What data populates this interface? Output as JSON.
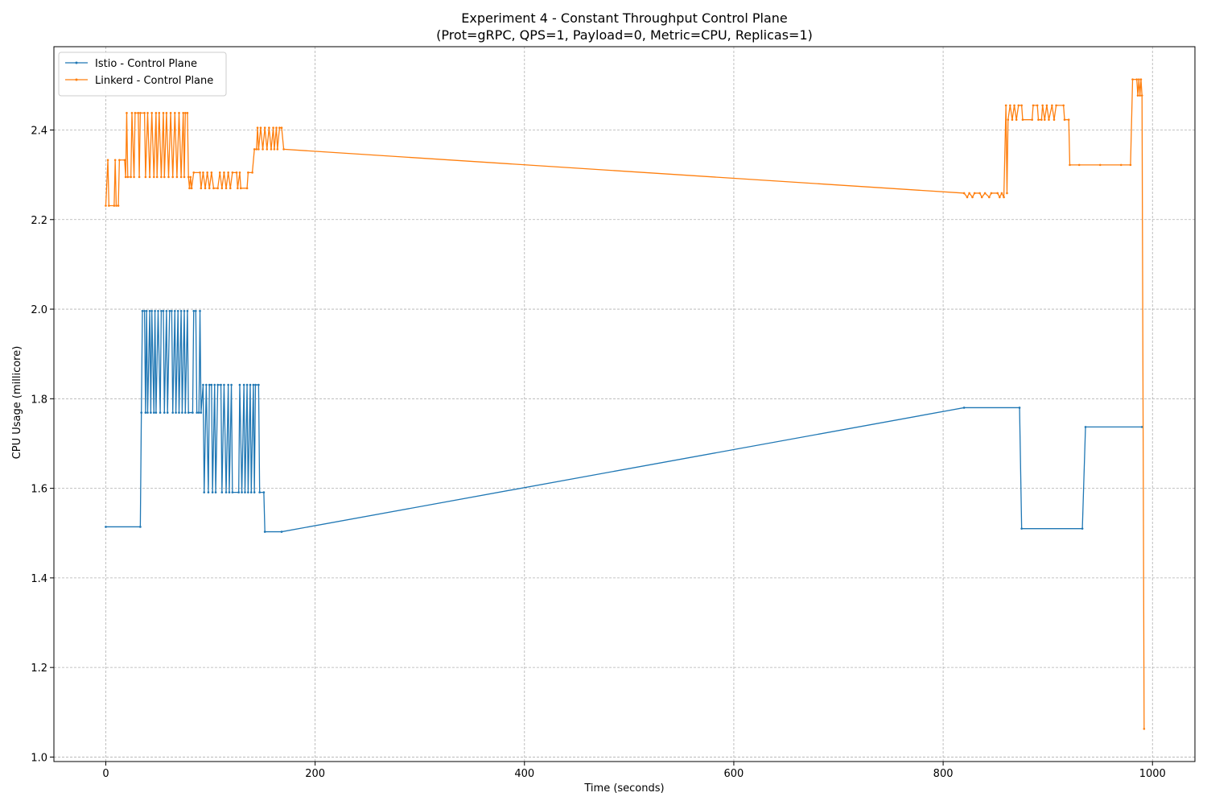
{
  "chart_data": {
    "type": "line",
    "title": "Experiment 4 - Constant Throughput Control Plane",
    "subtitle": "(Prot=gRPC, QPS=1, Payload=0, Metric=CPU, Replicas=1)",
    "x_label": "Time (seconds)",
    "y_label": "CPU Usage (millicore)",
    "xlim": [
      -49.55,
      1040.55
    ],
    "ylim": [
      0.99,
      2.586
    ],
    "xticks": [
      0,
      200,
      400,
      600,
      800,
      1000
    ],
    "yticks": [
      {
        "value": 1,
        "label": "1.0"
      },
      1.2,
      1.4,
      1.6,
      1.8,
      {
        "value": 2,
        "label": "2.0"
      },
      2.2,
      2.4
    ],
    "grid": true,
    "legend": "upper left",
    "series": [
      {
        "name": "Istio - Control Plane",
        "color": "#1f77b4",
        "x": [
          0,
          33,
          34,
          35,
          37,
          38,
          39,
          40,
          42,
          43,
          44,
          46,
          47,
          48,
          50,
          52,
          53,
          55,
          56,
          58,
          59,
          61,
          63,
          64,
          66,
          67,
          69,
          70,
          72,
          73,
          75,
          76,
          78,
          79,
          83,
          84,
          86,
          87,
          89,
          90,
          91,
          93,
          94,
          96,
          98,
          99,
          101,
          102,
          104,
          105,
          107,
          110,
          111,
          113,
          115,
          117,
          118,
          120,
          121,
          127,
          128,
          130,
          132,
          133,
          135,
          136,
          138,
          139,
          141,
          142,
          143,
          146,
          147,
          151,
          152,
          168,
          820,
          873,
          875,
          933,
          936,
          990
        ],
        "values": [
          1.514,
          1.514,
          1.769,
          1.996,
          1.996,
          1.769,
          1.996,
          1.769,
          1.996,
          1.769,
          1.996,
          1.769,
          1.996,
          1.769,
          1.996,
          1.769,
          1.996,
          1.996,
          1.769,
          1.996,
          1.769,
          1.996,
          1.996,
          1.769,
          1.996,
          1.769,
          1.996,
          1.769,
          1.996,
          1.769,
          1.996,
          1.769,
          1.996,
          1.769,
          1.769,
          1.996,
          1.996,
          1.769,
          1.769,
          1.996,
          1.769,
          1.831,
          1.591,
          1.831,
          1.591,
          1.831,
          1.831,
          1.591,
          1.831,
          1.591,
          1.831,
          1.831,
          1.591,
          1.831,
          1.591,
          1.831,
          1.591,
          1.831,
          1.591,
          1.591,
          1.831,
          1.591,
          1.831,
          1.591,
          1.831,
          1.591,
          1.831,
          1.591,
          1.831,
          1.591,
          1.831,
          1.831,
          1.591,
          1.591,
          1.503,
          1.503,
          1.78,
          1.78,
          1.51,
          1.51,
          1.737,
          1.737
        ]
      },
      {
        "name": "Linkerd - Control Plane",
        "color": "#ff7f0e",
        "x": [
          0,
          2,
          3,
          8,
          9,
          10,
          12,
          13,
          18,
          19,
          20,
          21,
          24,
          25,
          27,
          28,
          31,
          32,
          33,
          37,
          38,
          40,
          42,
          44,
          46,
          48,
          49,
          51,
          53,
          55,
          56,
          58,
          60,
          62,
          64,
          66,
          68,
          70,
          72,
          74,
          75,
          76,
          78,
          79,
          80,
          81,
          82,
          84,
          90,
          91,
          93,
          95,
          97,
          99,
          101,
          103,
          107,
          109,
          111,
          113,
          115,
          117,
          119,
          121,
          125,
          126,
          128,
          129,
          135,
          136,
          140,
          142,
          144,
          145,
          146,
          148,
          150,
          152,
          154,
          156,
          158,
          160,
          161,
          163,
          164,
          166,
          168,
          170,
          820,
          823,
          825,
          828,
          830,
          835,
          837,
          840,
          844,
          846,
          852,
          854,
          856,
          858,
          860,
          861,
          862,
          864,
          866,
          868,
          870,
          872,
          875,
          876,
          885,
          886,
          890,
          891,
          894,
          895,
          897,
          899,
          901,
          904,
          906,
          908,
          915,
          916,
          920,
          921,
          930,
          950,
          970,
          979,
          981,
          985,
          986,
          987,
          988,
          989,
          990,
          992
        ],
        "values": [
          2.231,
          2.333,
          2.231,
          2.231,
          2.333,
          2.231,
          2.231,
          2.333,
          2.333,
          2.295,
          2.438,
          2.295,
          2.295,
          2.438,
          2.295,
          2.438,
          2.438,
          2.295,
          2.438,
          2.438,
          2.295,
          2.438,
          2.295,
          2.438,
          2.295,
          2.438,
          2.295,
          2.438,
          2.295,
          2.438,
          2.295,
          2.438,
          2.295,
          2.438,
          2.295,
          2.438,
          2.295,
          2.438,
          2.295,
          2.438,
          2.295,
          2.438,
          2.438,
          2.295,
          2.27,
          2.295,
          2.27,
          2.305,
          2.305,
          2.27,
          2.305,
          2.27,
          2.305,
          2.27,
          2.305,
          2.27,
          2.27,
          2.305,
          2.27,
          2.305,
          2.27,
          2.305,
          2.27,
          2.305,
          2.305,
          2.27,
          2.305,
          2.27,
          2.27,
          2.305,
          2.305,
          2.357,
          2.357,
          2.405,
          2.357,
          2.405,
          2.357,
          2.405,
          2.357,
          2.405,
          2.357,
          2.405,
          2.357,
          2.405,
          2.357,
          2.405,
          2.405,
          2.357,
          2.259,
          2.25,
          2.259,
          2.25,
          2.259,
          2.259,
          2.25,
          2.259,
          2.25,
          2.259,
          2.259,
          2.25,
          2.259,
          2.25,
          2.455,
          2.259,
          2.423,
          2.455,
          2.423,
          2.455,
          2.423,
          2.455,
          2.455,
          2.423,
          2.423,
          2.455,
          2.455,
          2.423,
          2.423,
          2.455,
          2.423,
          2.455,
          2.423,
          2.455,
          2.423,
          2.455,
          2.455,
          2.423,
          2.423,
          2.322,
          2.322,
          2.322,
          2.322,
          2.322,
          2.513,
          2.513,
          2.477,
          2.513,
          2.477,
          2.513,
          2.477,
          1.063
        ]
      }
    ]
  }
}
